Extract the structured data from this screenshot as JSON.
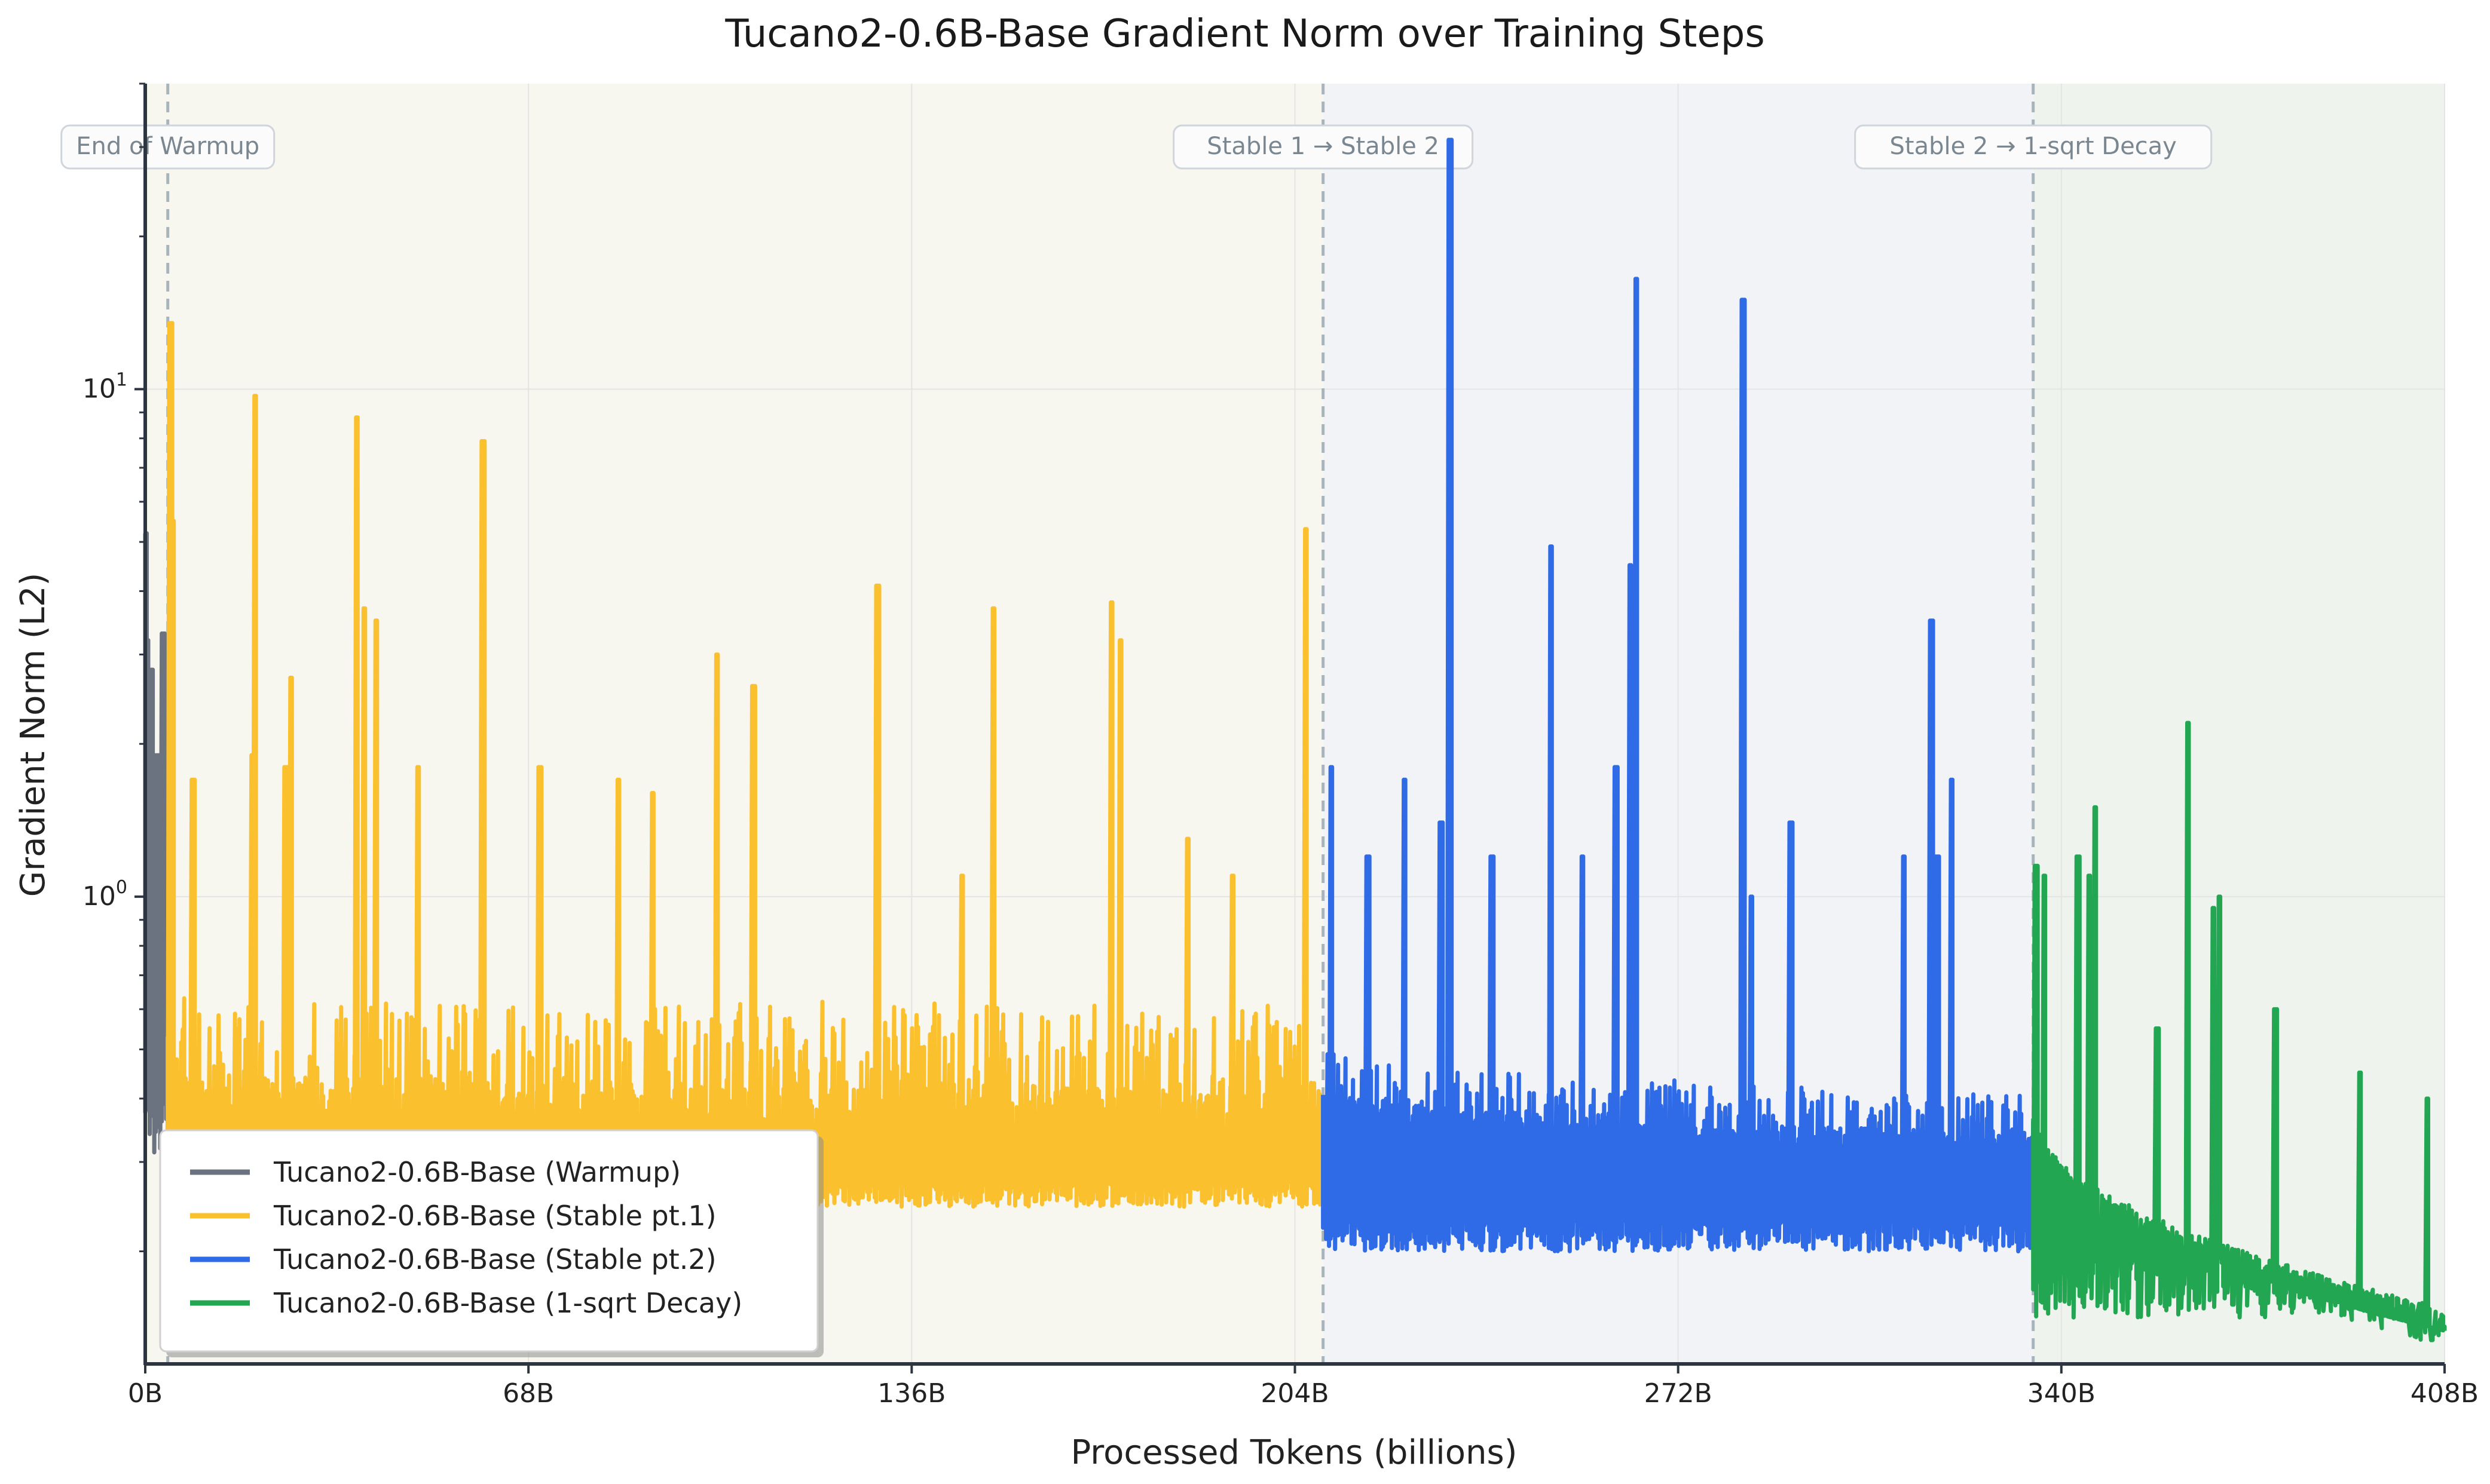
{
  "chart_data": {
    "type": "line",
    "title": "Tucano2-0.6B-Base Gradient Norm over Training Steps",
    "xlabel": "Processed Tokens (billions)",
    "ylabel": "Gradient Norm (L2)",
    "xlim": [
      0,
      408
    ],
    "ylim": [
      0.12,
      40
    ],
    "yscale": "log",
    "grid": true,
    "legend_position": "lower-left",
    "x_ticks": [
      {
        "value": 0,
        "label": "0B"
      },
      {
        "value": 68,
        "label": "68B"
      },
      {
        "value": 136,
        "label": "136B"
      },
      {
        "value": 204,
        "label": "204B"
      },
      {
        "value": 272,
        "label": "272B"
      },
      {
        "value": 340,
        "label": "340B"
      },
      {
        "value": 408,
        "label": "408B"
      }
    ],
    "y_ticks": [
      {
        "value": 1,
        "base": "10",
        "exp": "0"
      },
      {
        "value": 10,
        "base": "10",
        "exp": "1"
      }
    ],
    "regions": [
      {
        "x0": 0,
        "x1": 209,
        "color": "#f7f6ef"
      },
      {
        "x0": 209,
        "x1": 335,
        "color": "#f1f3f7"
      },
      {
        "x0": 335,
        "x1": 408,
        "color": "#eff3ee"
      }
    ],
    "phase_markers": [
      {
        "x": 4,
        "label": "End of Warmup"
      },
      {
        "x": 209,
        "label": "Stable 1 → Stable 2"
      },
      {
        "x": 335,
        "label": "Stable 2 → 1-sqrt Decay"
      }
    ],
    "series": [
      {
        "name": "Tucano2-0.6B-Base (Warmup)",
        "color": "#6b7280",
        "x_start": 0,
        "x_end": 4,
        "baseline_hi": 1.3,
        "baseline_lo": 0.45,
        "low_min": 0.3,
        "low_max": 0.42,
        "noise_hi": 1.6,
        "spikes": [
          [
            0.1,
            5.2
          ],
          [
            0.4,
            3.2
          ],
          [
            1.2,
            2.8
          ],
          [
            2.1,
            1.9
          ],
          [
            3.2,
            3.3
          ],
          [
            3.7,
            1.5
          ]
        ]
      },
      {
        "name": "Tucano2-0.6B-Base (Stable pt.1)",
        "color": "#fbc02d",
        "x_start": 4,
        "x_end": 209,
        "baseline_hi": 0.36,
        "baseline_lo": 0.34,
        "low_min": 0.245,
        "low_max": 0.275,
        "noise_hi": 1.5,
        "spikes": [
          [
            4.5,
            13.5
          ],
          [
            5.0,
            5.5
          ],
          [
            8.5,
            1.7
          ],
          [
            19,
            1.9
          ],
          [
            19.5,
            9.7
          ],
          [
            25,
            1.8
          ],
          [
            25.8,
            2.7
          ],
          [
            37.5,
            8.8
          ],
          [
            38.8,
            3.7
          ],
          [
            41,
            3.5
          ],
          [
            48.5,
            1.8
          ],
          [
            60,
            7.9
          ],
          [
            70,
            1.8
          ],
          [
            84,
            1.7
          ],
          [
            90,
            1.6
          ],
          [
            101.5,
            3.0
          ],
          [
            108,
            2.6
          ],
          [
            130,
            4.1
          ],
          [
            145,
            1.1
          ],
          [
            150.5,
            3.7
          ],
          [
            171.5,
            3.8
          ],
          [
            173,
            3.2
          ],
          [
            185,
            1.3
          ],
          [
            193,
            1.1
          ],
          [
            206,
            5.3
          ]
        ]
      },
      {
        "name": "Tucano2-0.6B-Base (Stable pt.2)",
        "color": "#2f6be6",
        "x_start": 209,
        "x_end": 335,
        "baseline_hi": 0.38,
        "baseline_lo": 0.31,
        "low_min": 0.2,
        "low_max": 0.23,
        "noise_hi": 1.2,
        "spikes": [
          [
            210.5,
            1.8
          ],
          [
            217,
            1.2
          ],
          [
            223.5,
            1.7
          ],
          [
            230,
            1.4
          ],
          [
            231.5,
            31
          ],
          [
            239,
            1.2
          ],
          [
            249.5,
            4.9
          ],
          [
            255,
            1.2
          ],
          [
            261,
            1.8
          ],
          [
            263.5,
            4.5
          ],
          [
            264.5,
            16.5
          ],
          [
            283.5,
            15
          ],
          [
            285,
            1.0
          ],
          [
            292,
            1.4
          ],
          [
            312,
            1.2
          ],
          [
            317,
            3.5
          ],
          [
            318,
            1.2
          ],
          [
            320.5,
            1.7
          ]
        ]
      },
      {
        "name": "Tucano2-0.6B-Base (1-sqrt Decay)",
        "color": "#22a652",
        "x_start": 335,
        "x_end": 408,
        "baseline_hi": 0.38,
        "baseline_lo": 0.155,
        "low_min": 0.148,
        "low_max": 0.2,
        "noise_hi": 0.9,
        "spikes": [
          [
            335.5,
            1.15
          ],
          [
            337,
            1.1
          ],
          [
            343,
            1.2
          ],
          [
            345,
            1.1
          ],
          [
            346,
            1.5
          ],
          [
            357,
            0.55
          ],
          [
            362.5,
            2.2
          ],
          [
            367,
            0.95
          ],
          [
            368,
            1.0
          ],
          [
            378,
            0.6
          ],
          [
            393,
            0.45
          ],
          [
            405,
            0.4
          ]
        ]
      }
    ]
  }
}
